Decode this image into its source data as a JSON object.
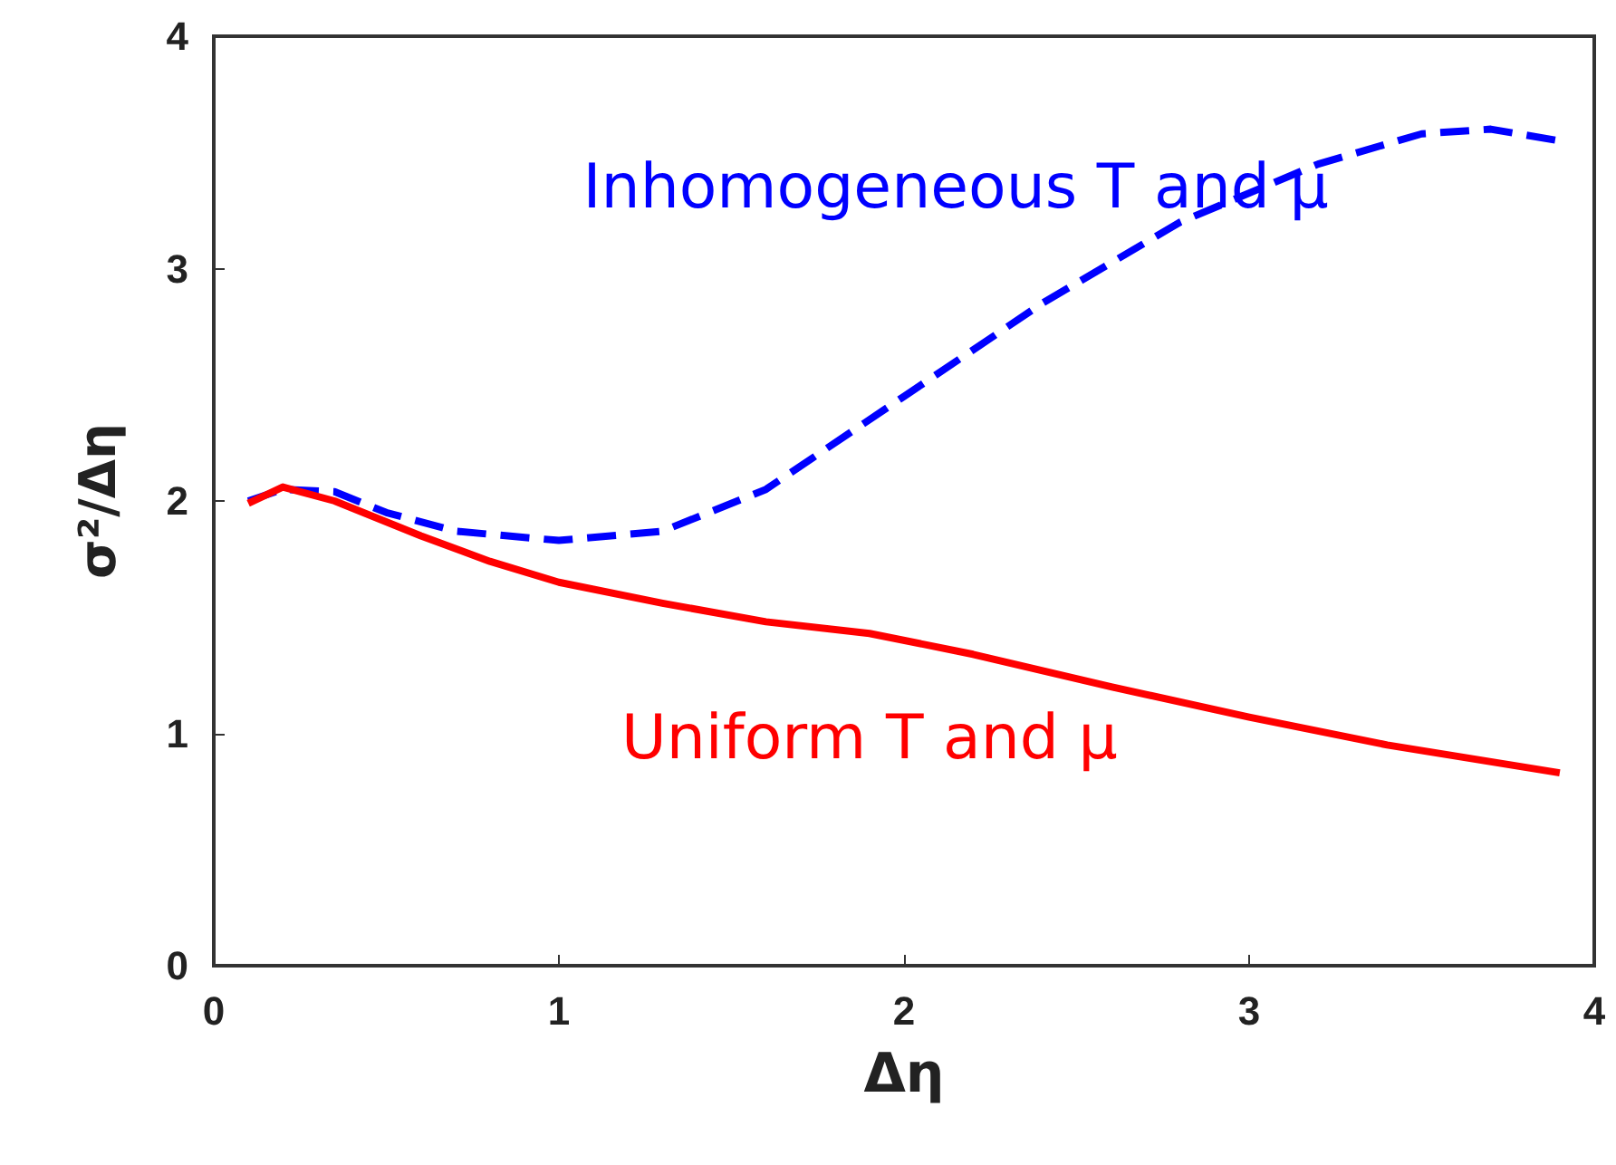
{
  "chart_data": {
    "type": "line",
    "xlabel": "Δη",
    "ylabel": "σ²/Δη",
    "xlim": [
      0,
      4
    ],
    "xticks": [
      0,
      1,
      2,
      3,
      4
    ],
    "ylim": [
      0,
      4
    ],
    "yticks": [
      0,
      1,
      2,
      3,
      4
    ],
    "grid": false,
    "legend": false,
    "marker": "none",
    "series": [
      {
        "name": "Inhomogeneous T and μ",
        "color": "#0000ff",
        "line_style": "dashed",
        "x": [
          0.1,
          0.2,
          0.35,
          0.5,
          0.7,
          1.0,
          1.3,
          1.6,
          2.0,
          2.4,
          2.8,
          3.2,
          3.5,
          3.7,
          3.9
        ],
        "values": [
          2.0,
          2.05,
          2.04,
          1.95,
          1.87,
          1.83,
          1.87,
          2.05,
          2.45,
          2.85,
          3.2,
          3.45,
          3.58,
          3.6,
          3.55
        ]
      },
      {
        "name": "Uniform T and μ",
        "color": "#ff0000",
        "line_style": "solid",
        "x": [
          0.1,
          0.2,
          0.35,
          0.6,
          0.8,
          1.0,
          1.3,
          1.6,
          1.9,
          2.2,
          2.6,
          3.0,
          3.4,
          3.9
        ],
        "values": [
          1.99,
          2.06,
          2.0,
          1.85,
          1.74,
          1.65,
          1.56,
          1.48,
          1.43,
          1.34,
          1.2,
          1.07,
          0.95,
          0.83
        ]
      }
    ]
  }
}
